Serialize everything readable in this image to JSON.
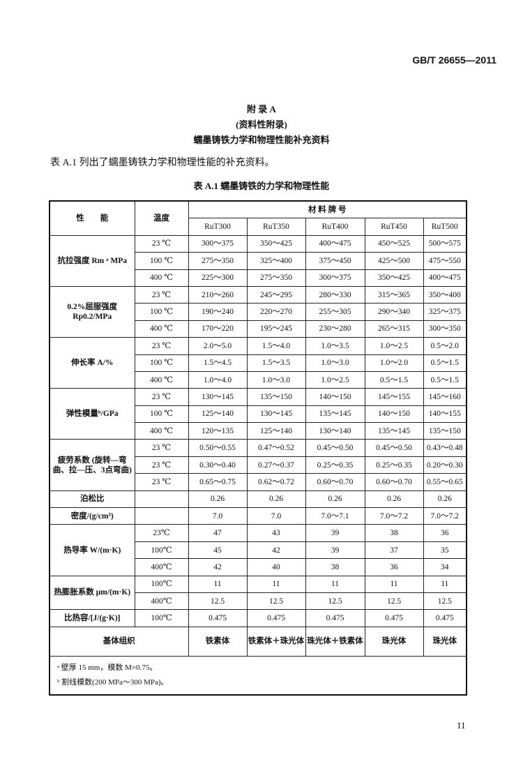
{
  "header": {
    "standard": "GB/T 26655—2011"
  },
  "annex": {
    "title": "附 录 A",
    "type": "(资料性附录)",
    "subtitle": "蠕墨铸铁力学和物理性能补充资料"
  },
  "intro": "表 A.1 列出了蠕墨铸铁力学和物理性能的补充资料。",
  "table": {
    "caption": "表 A.1   蠕墨铸铁的力学和物理性能",
    "col_property": "性　　能",
    "col_temp": "温度",
    "col_grades": "材 料 牌 号",
    "grades": [
      "RuT300",
      "RuT350",
      "RuT400",
      "RuT450",
      "RuT500"
    ],
    "groups": [
      {
        "property": "抗拉强度 Rm ᵃ MPa",
        "rows": [
          {
            "temp": "23 ℃",
            "values": [
              "300～375",
              "350～425",
              "400～475",
              "450～525",
              "500～575"
            ]
          },
          {
            "temp": "100 ℃",
            "values": [
              "275～350",
              "325～400",
              "375～450",
              "425～500",
              "475～550"
            ]
          },
          {
            "temp": "400 ℃",
            "values": [
              "225～300",
              "275～350",
              "300～375",
              "350～425",
              "400～475"
            ]
          }
        ]
      },
      {
        "property": "0.2%屈服强度 Rp0.2/MPa",
        "rows": [
          {
            "temp": "23 ℃",
            "values": [
              "210～260",
              "245～295",
              "280～330",
              "315～365",
              "350～400"
            ]
          },
          {
            "temp": "100 ℃",
            "values": [
              "190～240",
              "220～270",
              "255～305",
              "290～340",
              "325～375"
            ]
          },
          {
            "temp": "400 ℃",
            "values": [
              "170～220",
              "195～245",
              "230～280",
              "265～315",
              "300～350"
            ]
          }
        ]
      },
      {
        "property": "伸长率 A/%",
        "rows": [
          {
            "temp": "23 ℃",
            "values": [
              "2.0～5.0",
              "1.5～4.0",
              "1.0～3.5",
              "1.0～2.5",
              "0.5～2.0"
            ]
          },
          {
            "temp": "100 ℃",
            "values": [
              "1.5～4.5",
              "1.5～3.5",
              "1.0～3.0",
              "1.0～2.0",
              "0.5～1.5"
            ]
          },
          {
            "temp": "400 ℃",
            "values": [
              "1.0～4.0",
              "1.0～3.0",
              "1.0～2.5",
              "0.5～1.5",
              "0.5～1.5"
            ]
          }
        ]
      },
      {
        "property": "弹性模量ᵇ/GPa",
        "rows": [
          {
            "temp": "23 ℃",
            "values": [
              "130～145",
              "135～150",
              "140～150",
              "145～155",
              "145～160"
            ]
          },
          {
            "temp": "100 ℃",
            "values": [
              "125～140",
              "130～145",
              "135～145",
              "140～150",
              "140～155"
            ]
          },
          {
            "temp": "400 ℃",
            "values": [
              "120～135",
              "125～140",
              "130～140",
              "135～145",
              "135～150"
            ]
          }
        ]
      },
      {
        "property": "疲劳系数 (旋转—弯曲、拉—压、3点弯曲)",
        "rows": [
          {
            "temp": "23 ℃",
            "values": [
              "0.50～0.55",
              "0.47～0.52",
              "0.45～0.50",
              "0.45～0.50",
              "0.43～0.48"
            ]
          },
          {
            "temp": "23 ℃",
            "values": [
              "0.30～0.40",
              "0.27～0.37",
              "0.25～0.35",
              "0.25～0.35",
              "0.20～0.30"
            ]
          },
          {
            "temp": "23 ℃",
            "values": [
              "0.65～0.75",
              "0.62～0.72",
              "0.60～0.70",
              "0.60～0.70",
              "0.55～0.65"
            ]
          }
        ]
      },
      {
        "property": "泊松比",
        "rows": [
          {
            "temp": "",
            "values": [
              "0.26",
              "0.26",
              "0.26",
              "0.26",
              "0.26"
            ]
          }
        ]
      },
      {
        "property": "密度/(g/cm³)",
        "rows": [
          {
            "temp": "",
            "values": [
              "7.0",
              "7.0",
              "7.0～7.1",
              "7.0～7.2",
              "7.0～7.2"
            ]
          }
        ]
      },
      {
        "property": "热导率 W/(m·K)",
        "rows": [
          {
            "temp": "23℃",
            "values": [
              "47",
              "43",
              "39",
              "38",
              "36"
            ]
          },
          {
            "temp": "100℃",
            "values": [
              "45",
              "42",
              "39",
              "37",
              "35"
            ]
          },
          {
            "temp": "400℃",
            "values": [
              "42",
              "40",
              "38",
              "36",
              "34"
            ]
          }
        ]
      },
      {
        "property": "热膨胀系数 μm/(m·K)",
        "rows": [
          {
            "temp": "100℃",
            "values": [
              "11",
              "11",
              "11",
              "11",
              "11"
            ]
          },
          {
            "temp": "400℃",
            "values": [
              "12.5",
              "12.5",
              "12.5",
              "12.5",
              "12.5"
            ]
          }
        ]
      },
      {
        "property": "比热容/[J/(g·K)]",
        "rows": [
          {
            "temp": "100℃",
            "values": [
              "0.475",
              "0.475",
              "0.475",
              "0.475",
              "0.475"
            ]
          }
        ]
      }
    ],
    "matrix": {
      "label": "基体组织",
      "values": [
        "铁素体",
        "铁素体＋珠光体",
        "珠光体＋铁素体",
        "珠光体",
        "珠光体"
      ]
    },
    "footnotes": [
      "ᵃ 壁厚 15 mm，模数 M=0.75。",
      "ᵇ 割线模数(200 MPa～300 MPa)。"
    ]
  },
  "page_number": "11"
}
